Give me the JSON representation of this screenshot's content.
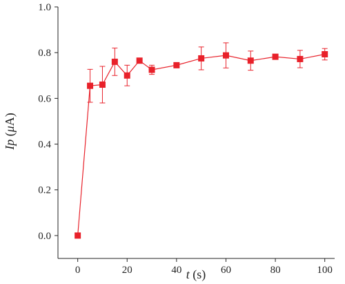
{
  "chart_data": {
    "type": "scatter",
    "xlabel_var": "t",
    "xlabel_unit": "(s)",
    "ylabel_var": "Ip",
    "ylabel_unit_open": "(",
    "ylabel_unit_mu": "μ",
    "ylabel_unit_rest": "A)",
    "xlim": [
      -8,
      104
    ],
    "ylim": [
      -0.1,
      1.0
    ],
    "x_ticks": [
      0,
      20,
      40,
      60,
      80,
      100
    ],
    "x_tick_labels": [
      "0",
      "20",
      "40",
      "60",
      "80",
      "100"
    ],
    "y_ticks": [
      0.0,
      0.2,
      0.4,
      0.6,
      0.8,
      1.0
    ],
    "y_tick_labels": [
      "0.0",
      "0.2",
      "0.4",
      "0.6",
      "0.8",
      "1.0"
    ],
    "grid": false,
    "series": [
      {
        "color": "#e8212a",
        "marker": "square",
        "line": true,
        "x": [
          0,
          5,
          10,
          15,
          20,
          25,
          30,
          40,
          50,
          60,
          70,
          80,
          90,
          100
        ],
        "y": [
          0.0,
          0.655,
          0.66,
          0.76,
          0.7,
          0.765,
          0.725,
          0.745,
          0.775,
          0.788,
          0.765,
          0.782,
          0.772,
          0.793
        ],
        "yerr": [
          0,
          0.072,
          0.08,
          0.06,
          0.045,
          0.008,
          0.02,
          0.005,
          0.05,
          0.055,
          0.042,
          0.008,
          0.038,
          0.025
        ]
      }
    ]
  }
}
